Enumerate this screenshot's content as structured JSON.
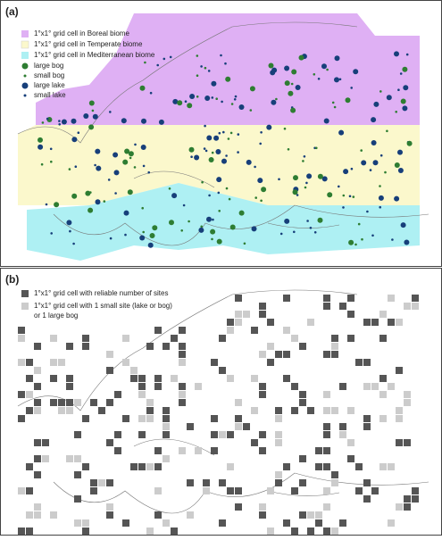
{
  "panel_a": {
    "label": "(a)",
    "legend": [
      "1°x1° grid cell in Boreal biome",
      "1°x1° grid cell in Temperate biome",
      "1°x1° grid cell in Mediterranean biome",
      "large bog",
      "small bog",
      "large lake",
      "small lake"
    ]
  },
  "panel_b": {
    "label": "(b)",
    "legend": [
      "1°x1° grid cell with reliable number of sites",
      "1°x1° grid cell with 1 small site (lake or bog)",
      "or 1 large bog"
    ]
  }
}
